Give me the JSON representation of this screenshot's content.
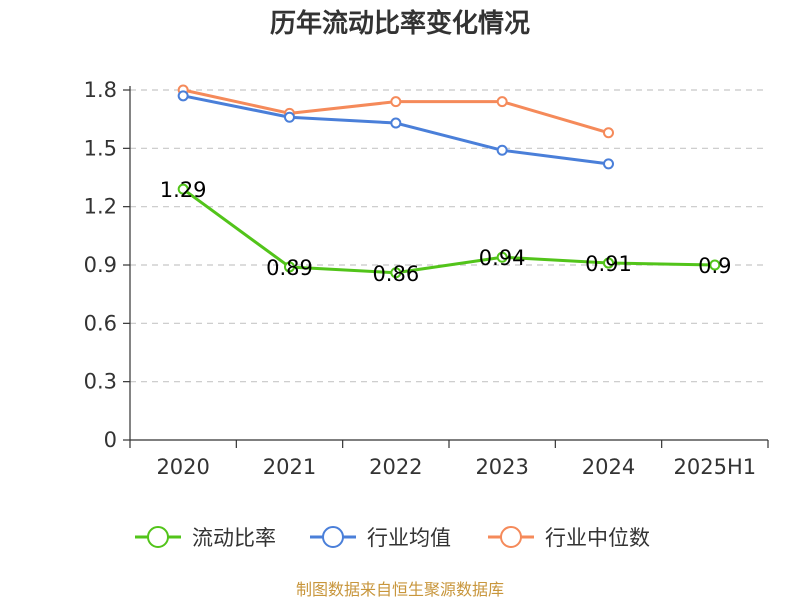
{
  "chart_data": {
    "type": "line",
    "title": "历年流动比率变化情况",
    "categories": [
      "2020",
      "2021",
      "2022",
      "2023",
      "2024",
      "2025H1"
    ],
    "yticks": [
      "0",
      "0.3",
      "0.6",
      "0.9",
      "1.2",
      "1.5",
      "1.8"
    ],
    "ylim": [
      0,
      1.8
    ],
    "grid": true,
    "legend_position": "bottom",
    "series": [
      {
        "name": "流动比率",
        "color": "#52c41a",
        "values": [
          1.29,
          0.89,
          0.86,
          0.94,
          0.91,
          0.9
        ],
        "labels": [
          "1.29",
          "0.89",
          "0.86",
          "0.94",
          "0.91",
          "0.9"
        ]
      },
      {
        "name": "行业均值",
        "color": "#4a7fd9",
        "values": [
          1.77,
          1.66,
          1.63,
          1.49,
          1.42,
          null
        ]
      },
      {
        "name": "行业中位数",
        "color": "#f58a5a",
        "values": [
          1.8,
          1.68,
          1.74,
          1.74,
          1.58,
          null
        ]
      }
    ]
  },
  "source": {
    "text": "制图数据来自恒生聚源数据库",
    "color": "#c8963c"
  }
}
